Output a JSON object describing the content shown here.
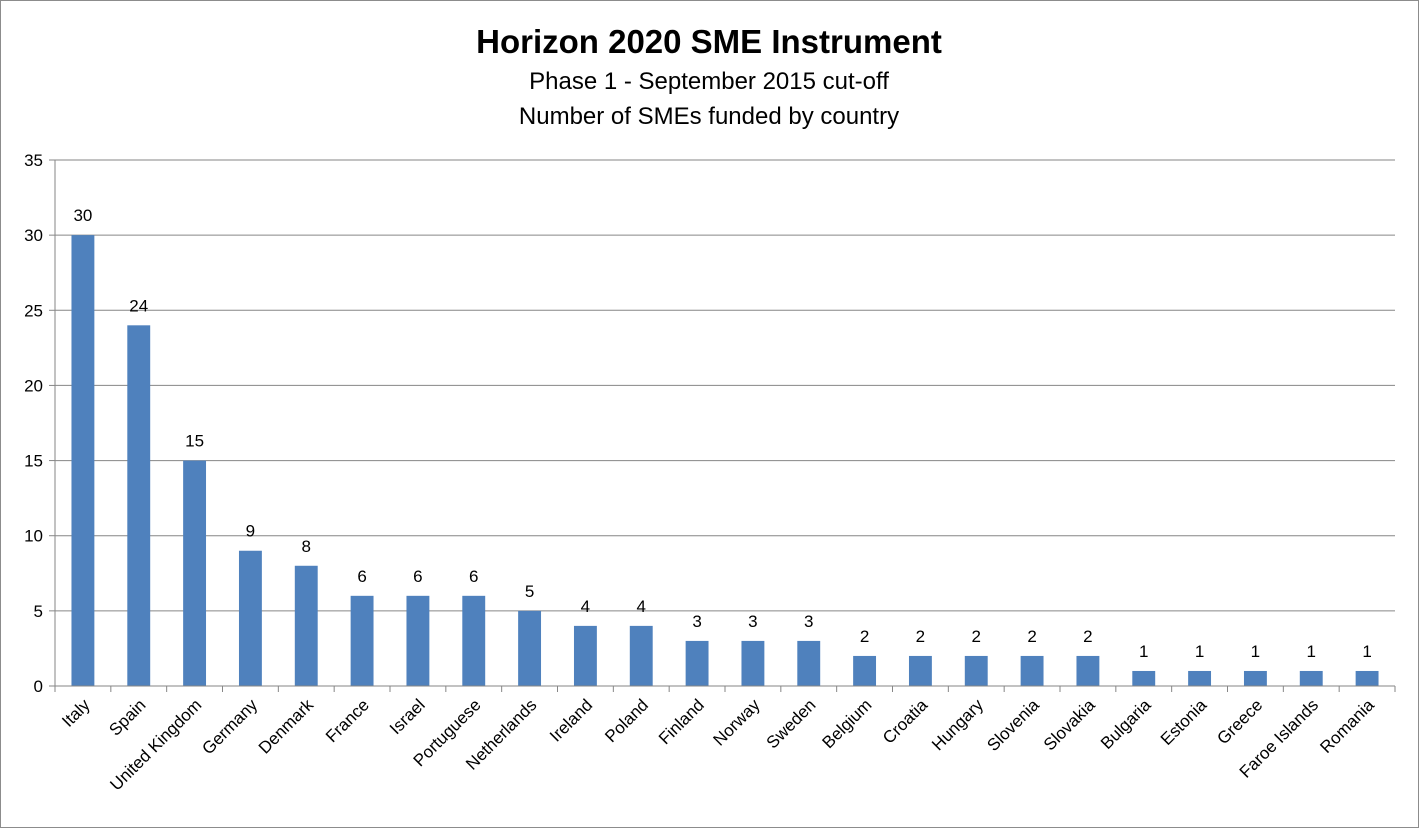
{
  "chart_data": {
    "type": "bar",
    "title": "Horizon 2020 SME Instrument",
    "subtitle": [
      "Phase 1 - September 2015 cut-off",
      "Number of SMEs funded by country"
    ],
    "xlabel": "",
    "ylabel": "",
    "ylim": [
      0,
      35
    ],
    "yticks": [
      0,
      5,
      10,
      15,
      20,
      25,
      30,
      35
    ],
    "grid": true,
    "legend": "none",
    "bar_color": "#4f81bd",
    "categories": [
      "Italy",
      "Spain",
      "United Kingdom",
      "Germany",
      "Denmark",
      "France",
      "Israel",
      "Portuguese",
      "Netherlands",
      "Ireland",
      "Poland",
      "Finland",
      "Norway",
      "Sweden",
      "Belgium",
      "Croatia",
      "Hungary",
      "Slovenia",
      "Slovakia",
      "Bulgaria",
      "Estonia",
      "Greece",
      "Faroe Islands",
      "Romania"
    ],
    "values": [
      30,
      24,
      15,
      9,
      8,
      6,
      6,
      6,
      5,
      4,
      4,
      3,
      3,
      3,
      2,
      2,
      2,
      2,
      2,
      1,
      1,
      1,
      1,
      1
    ]
  }
}
